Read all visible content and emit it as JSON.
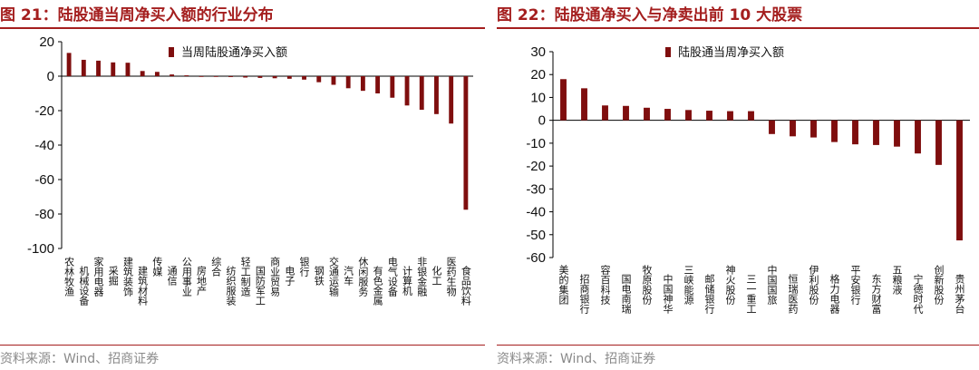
{
  "colors": {
    "accent": "#a41e1e",
    "bar": "#7f0e0e",
    "source": "#8a8a8a"
  },
  "left": {
    "title": "图 21：陆股通当周净买入额的行业分布",
    "source": "资料来源：Wind、招商证券"
  },
  "right": {
    "title": "图 22：陆股通净买入与净卖出前 10 大股票",
    "source": "资料来源：Wind、招商证券"
  },
  "chart_data": [
    {
      "type": "bar",
      "legend": "当周陆股通净买入额",
      "legend_position": "top-right",
      "ylim": [
        -100,
        20
      ],
      "yticks": [
        20,
        0,
        -20,
        -40,
        -60,
        -80,
        -100
      ],
      "grid": false,
      "categories": [
        "农林牧渔",
        "机械设备",
        "家用电器",
        "采掘",
        "建筑装饰",
        "建筑材料",
        "传媒",
        "通信",
        "公用事业",
        "房地产",
        "综合",
        "纺织服装",
        "轻工制造",
        "国防军工",
        "商业贸易",
        "电子",
        "银行",
        "钢铁",
        "交通运输",
        "汽车",
        "休闲服务",
        "有色金属",
        "电气设备",
        "计算机",
        "非银金融",
        "化工",
        "医药生物",
        "食品饮料"
      ],
      "values": [
        13.5,
        9.5,
        9,
        8,
        7.8,
        3,
        2.5,
        1,
        0.5,
        0,
        -0.3,
        -0.5,
        -0.8,
        -1,
        -1.2,
        -1.5,
        -2,
        -3.5,
        -5,
        -7,
        -8.5,
        -10,
        -12.5,
        -17,
        -19.5,
        -22,
        -27.5,
        -77.5
      ]
    },
    {
      "type": "bar",
      "legend": "陆股通当周净买入额",
      "legend_position": "top-right",
      "ylim": [
        -60,
        30
      ],
      "yticks": [
        30,
        20,
        10,
        0,
        -10,
        -20,
        -30,
        -40,
        -50,
        -60
      ],
      "grid": false,
      "categories": [
        "美的集团",
        "招商银行",
        "容百科技",
        "国电南瑞",
        "牧原股份",
        "中国神华",
        "三峡能源",
        "邮储银行",
        "神火股份",
        "三一重工",
        "中国国旅",
        "恒瑞医药",
        "伊利股份",
        "格力电器",
        "平安银行",
        "东方财富",
        "五粮液",
        "宁德时代",
        "创新股份",
        "贵州茅台"
      ],
      "values": [
        18,
        14,
        6.5,
        6.3,
        5.5,
        5,
        4.5,
        4.2,
        4,
        4,
        -6,
        -7,
        -7.5,
        -9.5,
        -10.5,
        -10.8,
        -11.5,
        -14.5,
        -19.5,
        -52.5
      ]
    }
  ]
}
